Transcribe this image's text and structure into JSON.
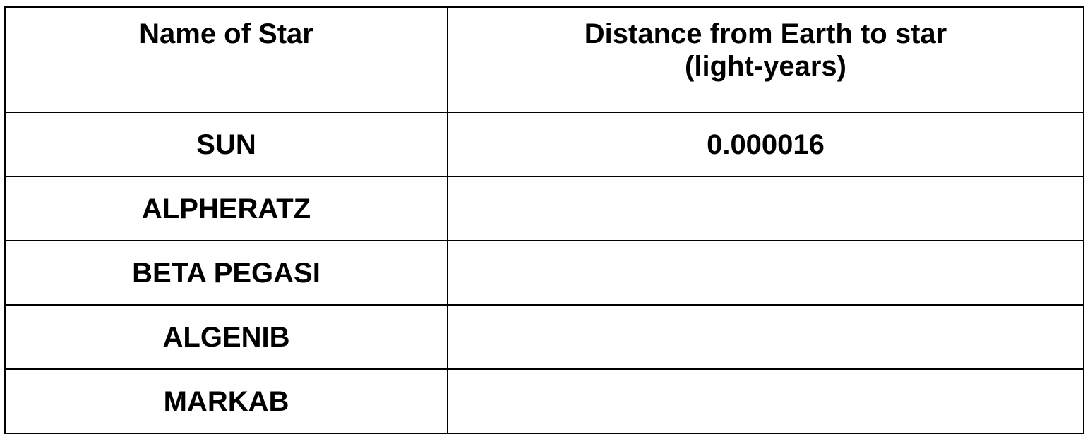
{
  "table": {
    "headers": [
      "Name of Star",
      "Distance from Earth to star (light-years)"
    ],
    "header_line1": "Distance from Earth to star",
    "header_line2": "(light-years)",
    "rows": [
      {
        "name": "SUN",
        "distance": "0.000016"
      },
      {
        "name": "ALPHERATZ",
        "distance": ""
      },
      {
        "name": "BETA PEGASI",
        "distance": ""
      },
      {
        "name": "ALGENIB",
        "distance": ""
      },
      {
        "name": "MARKAB",
        "distance": ""
      }
    ]
  }
}
